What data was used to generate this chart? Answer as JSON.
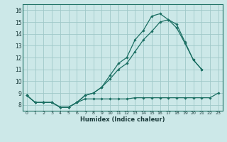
{
  "xlabel": "Humidex (Indice chaleur)",
  "bg_color": "#cce8e8",
  "grid_color": "#9fc8c8",
  "line_color": "#1a6e62",
  "xlim": [
    -0.5,
    23.5
  ],
  "ylim": [
    7.5,
    16.5
  ],
  "xtick_vals": [
    0,
    1,
    2,
    3,
    4,
    5,
    6,
    7,
    8,
    9,
    10,
    11,
    12,
    13,
    14,
    15,
    16,
    17,
    18,
    19,
    20,
    21,
    22,
    23
  ],
  "ytick_vals": [
    8,
    9,
    10,
    11,
    12,
    13,
    14,
    15,
    16
  ],
  "line_flat_x": [
    0,
    1,
    2,
    3,
    4,
    5,
    6,
    7,
    8,
    9,
    10,
    11,
    12,
    13,
    14,
    15,
    16,
    17,
    18,
    19,
    20,
    21,
    22,
    23
  ],
  "line_flat_y": [
    8.8,
    8.2,
    8.2,
    8.2,
    7.8,
    7.8,
    8.2,
    8.5,
    8.5,
    8.5,
    8.5,
    8.5,
    8.5,
    8.6,
    8.6,
    8.6,
    8.6,
    8.6,
    8.6,
    8.6,
    8.6,
    8.6,
    8.6,
    9.0
  ],
  "line_high_x": [
    0,
    1,
    2,
    3,
    4,
    5,
    6,
    7,
    8,
    9,
    10,
    11,
    12,
    13,
    14,
    15,
    16,
    17,
    18,
    19,
    20,
    21
  ],
  "line_high_y": [
    8.8,
    8.2,
    8.2,
    8.2,
    7.8,
    7.8,
    8.2,
    8.8,
    9.0,
    9.5,
    10.5,
    11.5,
    12.0,
    13.5,
    14.3,
    15.5,
    15.7,
    15.2,
    14.8,
    13.3,
    11.8,
    11.0
  ],
  "line_mid_x": [
    0,
    1,
    2,
    3,
    4,
    5,
    6,
    7,
    8,
    9,
    10,
    11,
    12,
    13,
    14,
    15,
    16,
    17,
    18,
    19,
    20,
    21
  ],
  "line_mid_y": [
    8.8,
    8.2,
    8.2,
    8.2,
    7.8,
    7.8,
    8.2,
    8.8,
    9.0,
    9.5,
    10.2,
    11.0,
    11.5,
    12.5,
    13.5,
    14.2,
    15.0,
    15.2,
    14.5,
    13.2,
    11.8,
    11.0
  ]
}
